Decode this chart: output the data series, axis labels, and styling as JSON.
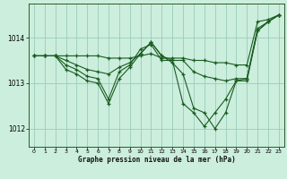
{
  "title": "Graphe pression niveau de la mer (hPa)",
  "bg_color": "#cceedd",
  "grid_color": "#99ccbb",
  "line_color": "#1a5c20",
  "ylim": [
    1011.6,
    1014.75
  ],
  "yticks": [
    1012,
    1013,
    1014
  ],
  "xlim": [
    -0.5,
    23.5
  ],
  "xticks": [
    0,
    1,
    2,
    3,
    4,
    5,
    6,
    7,
    8,
    9,
    10,
    11,
    12,
    13,
    14,
    15,
    16,
    17,
    18,
    19,
    20,
    21,
    22,
    23
  ],
  "lines": [
    {
      "x": [
        0,
        1,
        2,
        3,
        4,
        5,
        6,
        7,
        8,
        9,
        10,
        11,
        12,
        13,
        14,
        15,
        16,
        17,
        18,
        19,
        20,
        21,
        22,
        23
      ],
      "y": [
        1013.6,
        1013.6,
        1013.6,
        1013.6,
        1013.6,
        1013.6,
        1013.6,
        1013.55,
        1013.55,
        1013.55,
        1013.6,
        1013.65,
        1013.55,
        1013.55,
        1013.55,
        1013.5,
        1013.5,
        1013.45,
        1013.45,
        1013.4,
        1013.4,
        1014.35,
        1014.4,
        1014.5
      ]
    },
    {
      "x": [
        0,
        1,
        2,
        3,
        4,
        5,
        6,
        7,
        8,
        9,
        10,
        11,
        12,
        13,
        14,
        15,
        16,
        17,
        18,
        19,
        20,
        21,
        22,
        23
      ],
      "y": [
        1013.6,
        1013.6,
        1013.6,
        1013.5,
        1013.4,
        1013.3,
        1013.25,
        1013.2,
        1013.35,
        1013.45,
        1013.65,
        1013.9,
        1013.6,
        1013.45,
        1013.2,
        1012.45,
        1012.35,
        1012.0,
        1012.35,
        1013.05,
        1013.05,
        1014.15,
        1014.35,
        1014.5
      ]
    },
    {
      "x": [
        0,
        1,
        2,
        3,
        4,
        5,
        6,
        7,
        8,
        9,
        10,
        11,
        12,
        13,
        14,
        15,
        16,
        17,
        18,
        19,
        20,
        21,
        22,
        23
      ],
      "y": [
        1013.6,
        1013.6,
        1013.6,
        1013.4,
        1013.3,
        1013.15,
        1013.1,
        1012.65,
        1013.25,
        1013.4,
        1013.75,
        1013.85,
        1013.5,
        1013.5,
        1013.5,
        1013.25,
        1013.15,
        1013.1,
        1013.05,
        1013.1,
        1013.1,
        1014.2,
        1014.35,
        1014.5
      ]
    },
    {
      "x": [
        0,
        1,
        2,
        3,
        4,
        5,
        6,
        7,
        8,
        9,
        10,
        11,
        12,
        13,
        14,
        15,
        16,
        17,
        18,
        19,
        20,
        21,
        22,
        23
      ],
      "y": [
        1013.6,
        1013.6,
        1013.6,
        1013.3,
        1013.2,
        1013.05,
        1013.0,
        1012.55,
        1013.1,
        1013.35,
        1013.65,
        1013.9,
        1013.6,
        1013.5,
        1012.55,
        1012.35,
        1012.05,
        1012.35,
        1012.65,
        1013.05,
        1013.1,
        1014.15,
        1014.35,
        1014.5
      ]
    }
  ]
}
